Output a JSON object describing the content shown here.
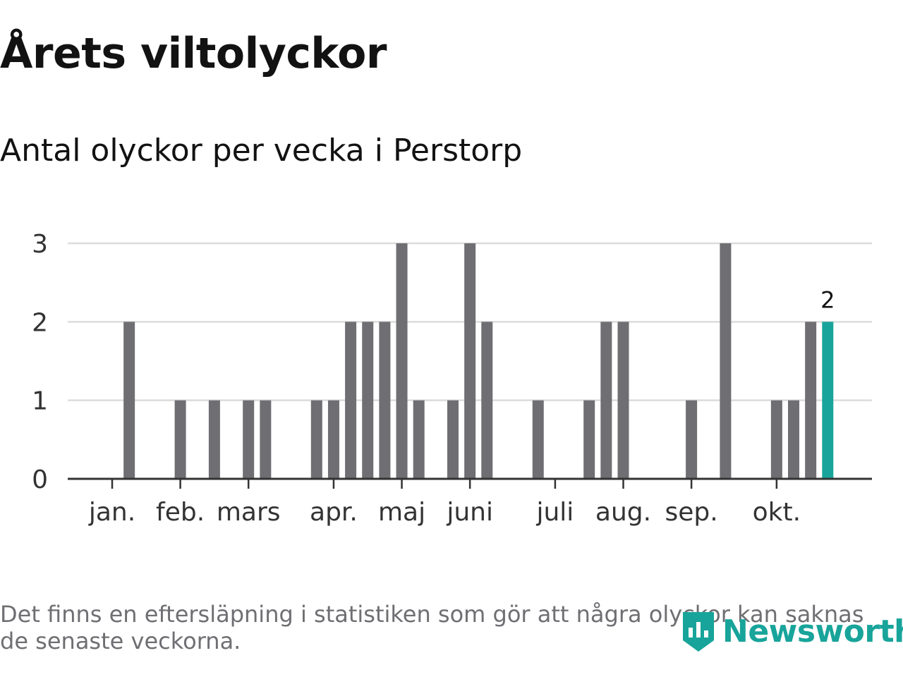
{
  "header": {
    "title": "Årets viltolyckor",
    "subtitle": "Antal olyckor per vecka i Perstorp"
  },
  "colors": {
    "bar": "#6f6e72",
    "highlight": "#18a49a",
    "grid": "#dcdcdc",
    "axis": "#333333",
    "text": "#121212",
    "muted": "#6f6f73"
  },
  "chart_data": {
    "type": "bar",
    "title": "Antal olyckor per vecka i Perstorp",
    "xlabel": "",
    "ylabel": "",
    "ylim": [
      0,
      3
    ],
    "yticks": [
      0,
      1,
      2,
      3
    ],
    "grid": true,
    "x": [
      1,
      2,
      3,
      4,
      5,
      6,
      7,
      8,
      9,
      10,
      11,
      12,
      13,
      14,
      15,
      16,
      17,
      18,
      19,
      20,
      21,
      22,
      23,
      24,
      25,
      26,
      27,
      28,
      29,
      30,
      31,
      32,
      33,
      34,
      35,
      36,
      37,
      38,
      39,
      40,
      41,
      42,
      43,
      44
    ],
    "values": [
      0,
      2,
      0,
      0,
      1,
      0,
      1,
      0,
      1,
      1,
      0,
      0,
      1,
      1,
      2,
      2,
      2,
      3,
      1,
      0,
      1,
      3,
      2,
      0,
      0,
      1,
      0,
      0,
      1,
      2,
      2,
      0,
      0,
      0,
      1,
      0,
      3,
      0,
      0,
      1,
      1,
      2,
      2,
      0
    ],
    "highlight": {
      "x": 43,
      "label": "2"
    },
    "month_ticks": [
      {
        "label": "jan.",
        "x": 1
      },
      {
        "label": "feb.",
        "x": 5
      },
      {
        "label": "mars",
        "x": 9
      },
      {
        "label": "apr.",
        "x": 14
      },
      {
        "label": "maj",
        "x": 18
      },
      {
        "label": "juni",
        "x": 22
      },
      {
        "label": "juli",
        "x": 27
      },
      {
        "label": "aug.",
        "x": 31
      },
      {
        "label": "sep.",
        "x": 35
      },
      {
        "label": "okt.",
        "x": 40
      }
    ]
  },
  "footer": {
    "note": "Det finns en eftersläpning i statistiken som gör att några olyckor kan saknas de senaste veckorna.",
    "brand": "Newsworthy",
    "brand_icon": "newsworthy-logo-icon"
  }
}
